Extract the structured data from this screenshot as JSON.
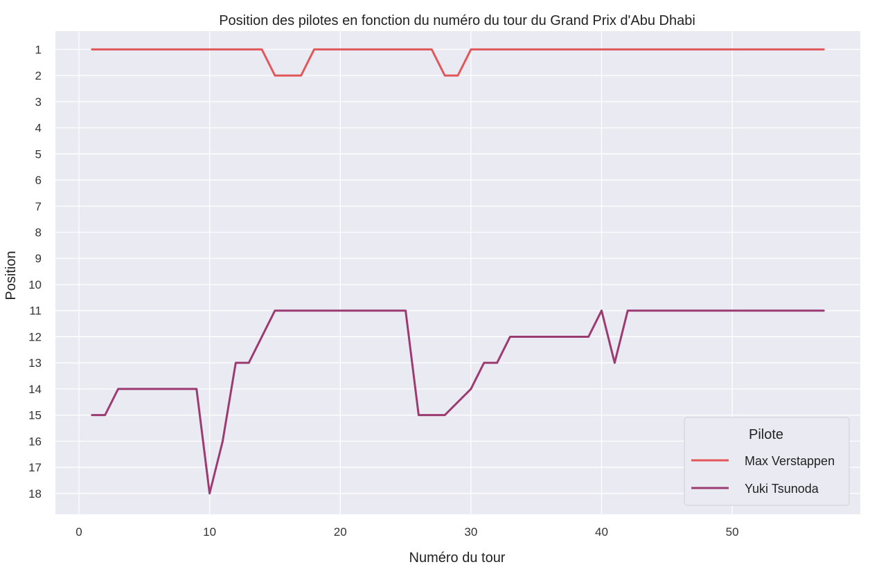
{
  "chart_data": {
    "type": "line",
    "title": "Position des pilotes en fonction du numéro du tour du Grand Prix d'Abu Dhabi",
    "xlabel": "Numéro du tour",
    "ylabel": "Position",
    "xlim": [
      -1.8,
      59.8
    ],
    "ylim": [
      18.8,
      0.3
    ],
    "y_inverted": true,
    "grid": true,
    "xticks": [
      0,
      10,
      20,
      30,
      40,
      50
    ],
    "yticks": [
      1,
      2,
      3,
      4,
      5,
      6,
      7,
      8,
      9,
      10,
      11,
      12,
      13,
      14,
      15,
      16,
      17,
      18
    ],
    "legend": {
      "title": "Pilote",
      "placement": "lower-right"
    },
    "x": [
      1,
      2,
      3,
      4,
      5,
      6,
      7,
      8,
      9,
      10,
      11,
      12,
      13,
      14,
      15,
      16,
      17,
      18,
      19,
      20,
      21,
      22,
      23,
      24,
      25,
      26,
      27,
      28,
      29,
      30,
      31,
      32,
      33,
      34,
      35,
      36,
      37,
      38,
      39,
      40,
      41,
      42,
      43,
      44,
      45,
      46,
      47,
      48,
      49,
      50,
      51,
      52,
      53,
      54,
      55,
      56,
      57
    ],
    "series": [
      {
        "name": "Max Verstappen",
        "color": "#e15759",
        "values": [
          1,
          1,
          1,
          1,
          1,
          1,
          1,
          1,
          1,
          1,
          1,
          1,
          1,
          1,
          2,
          2,
          2,
          1,
          1,
          1,
          1,
          1,
          1,
          1,
          1,
          1,
          1,
          2,
          2,
          1,
          1,
          1,
          1,
          1,
          1,
          1,
          1,
          1,
          1,
          1,
          1,
          1,
          1,
          1,
          1,
          1,
          1,
          1,
          1,
          1,
          1,
          1,
          1,
          1,
          1,
          1,
          1
        ]
      },
      {
        "name": "Yuki Tsunoda",
        "color": "#9c3a72",
        "values": [
          15,
          15,
          14,
          14,
          14,
          14,
          14,
          14,
          14,
          18,
          16,
          13,
          13,
          12,
          11,
          11,
          11,
          11,
          11,
          11,
          11,
          11,
          11,
          11,
          11,
          15,
          15,
          15,
          14.5,
          14,
          13,
          13,
          12,
          12,
          12,
          12,
          12,
          12,
          12,
          11,
          13,
          11,
          11,
          11,
          11,
          11,
          11,
          11,
          11,
          11,
          11,
          11,
          11,
          11,
          11,
          11,
          11
        ]
      }
    ]
  }
}
